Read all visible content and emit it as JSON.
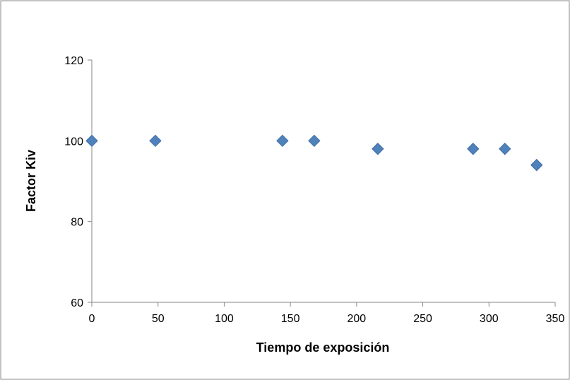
{
  "chart_data": {
    "type": "scatter",
    "title": "",
    "xlabel": "Tiempo de exposición",
    "ylabel": "Factor Kiv",
    "xlim": [
      0,
      350
    ],
    "ylim": [
      60,
      120
    ],
    "x_ticks": [
      0,
      50,
      100,
      150,
      200,
      250,
      300,
      350
    ],
    "y_ticks": [
      60,
      80,
      100,
      120
    ],
    "grid": false,
    "legend": "none",
    "marker": "diamond",
    "marker_color": "#4F81BD",
    "series": [
      {
        "x": [
          0,
          48,
          144,
          168,
          216,
          288,
          312,
          336
        ],
        "y": [
          100,
          100,
          100,
          100,
          98,
          98,
          98,
          94
        ]
      }
    ]
  }
}
